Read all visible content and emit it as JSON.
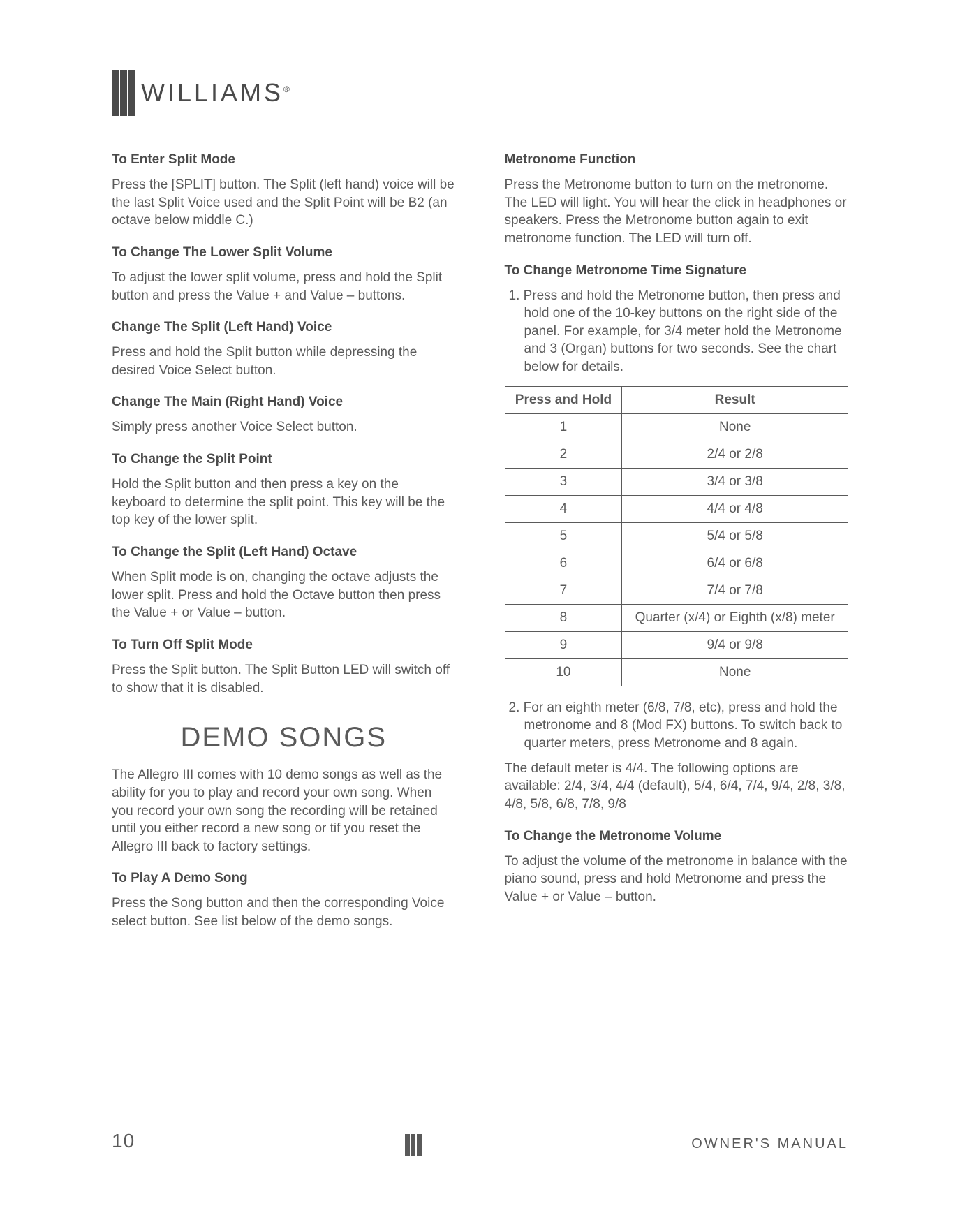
{
  "logo": {
    "brand": "WILLIAMS",
    "reg": "®"
  },
  "crop": {},
  "left": {
    "h1": "To Enter Split Mode",
    "p1": "Press the [SPLIT] button. The Split (left hand) voice will be the last Split Voice used and the Split Point will be B2 (an octave below middle C.)",
    "h2": "To Change The Lower Split Volume",
    "p2": "To adjust the lower split volume, press and hold the Split button and press the Value + and Value – buttons.",
    "h3": "Change The Split (Left Hand) Voice",
    "p3": "Press and hold the Split button while depressing the desired Voice Select button.",
    "h4": "Change The Main (Right Hand) Voice",
    "p4": "Simply press another Voice Select button.",
    "h5": "To Change the Split Point",
    "p5": "Hold the Split button and then press a key on the keyboard to determine the split point. This key will be the top key of the lower split.",
    "h6": "To Change the Split (Left Hand) Octave",
    "p6": "When Split mode is on, changing the octave adjusts the lower split. Press and hold the Octave button then press the Value + or Value – button.",
    "h7": "To Turn Off Split Mode",
    "p7": "Press the Split button. The Split Button LED will switch off to show that it is disabled.",
    "section": "DEMO SONGS",
    "p8": "The Allegro III comes with 10 demo songs as well as the ability for you to play and record your own song. When you record your own song the recording will be retained until you either record a new song or tif you reset the Allegro III back to factory settings.",
    "h8": "To Play A Demo Song",
    "p9": "Press the Song button and then the corresponding Voice select button. See list below of the demo songs."
  },
  "right": {
    "h1": "Metronome Function",
    "p1": "Press the Metronome button to turn on the metronome. The LED will light. You will hear the click in headphones or speakers. Press the Metronome button again to exit metronome function. The LED will turn off.",
    "h2": "To Change Metronome Time Signature",
    "li1": "1. Press and hold the Metronome button, then press and hold one of the 10-key buttons on the right side of the panel. For example, for 3/4 meter hold the Metronome and 3 (Organ) buttons for two seconds. See the chart below for details.",
    "table": {
      "col1": "Press and Hold",
      "col2": "Result",
      "rows": [
        [
          "1",
          "None"
        ],
        [
          "2",
          "2/4 or 2/8"
        ],
        [
          "3",
          "3/4 or 3/8"
        ],
        [
          "4",
          "4/4 or 4/8"
        ],
        [
          "5",
          "5/4 or 5/8"
        ],
        [
          "6",
          "6/4 or 6/8"
        ],
        [
          "7",
          "7/4 or 7/8"
        ],
        [
          "8",
          "Quarter (x/4) or Eighth (x/8) meter"
        ],
        [
          "9",
          "9/4 or 9/8"
        ],
        [
          "10",
          "None"
        ]
      ]
    },
    "li2": "2. For an eighth meter (6/8, 7/8, etc), press and hold the metronome and 8 (Mod FX) buttons. To switch back to quarter meters, press Metronome and 8 again.",
    "p2": "The default meter is 4/4. The following options are available: 2/4, 3/4, 4/4 (default), 5/4, 6/4, 7/4, 9/4, 2/8, 3/8, 4/8, 5/8, 6/8, 7/8, 9/8",
    "h3": "To Change the Metronome Volume",
    "p3": "To adjust the volume of the metronome in balance with the piano sound, press and hold Metronome and press the Value + or Value – button."
  },
  "footer": {
    "page": "10",
    "label": "OWNER'S MANUAL"
  }
}
